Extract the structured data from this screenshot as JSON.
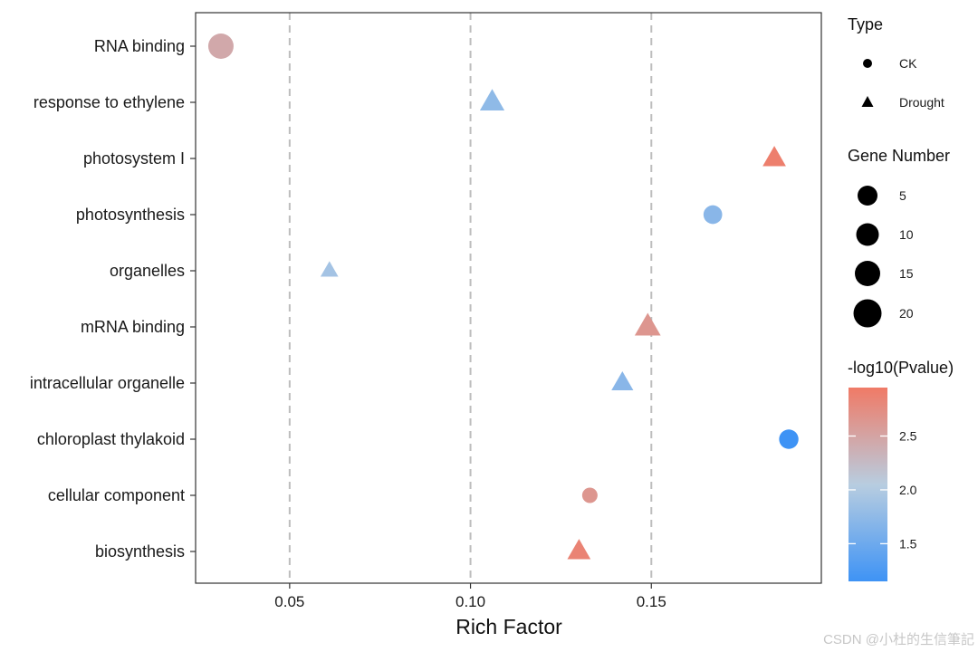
{
  "chart_data": {
    "type": "scatter",
    "xlabel": "Rich Factor",
    "x_ticks": [
      "0.05",
      "0.10",
      "0.15"
    ],
    "xlim": [
      0.024,
      0.197
    ],
    "categories": [
      "biosynthesis",
      "cellular component",
      "chloroplast thylakoid",
      "intracellular organelle",
      "mRNA binding",
      "organelles",
      "photosynthesis",
      "photosystem I",
      "response to ethylene",
      "RNA binding"
    ],
    "points": [
      {
        "term": "RNA binding",
        "rich_factor": 0.031,
        "type": "CK",
        "gene_number": 20,
        "neg_log10_pvalue": 2.45
      },
      {
        "term": "response to ethylene",
        "rich_factor": 0.106,
        "type": "Drought",
        "gene_number": 18,
        "neg_log10_pvalue": 1.75
      },
      {
        "term": "photosystem I",
        "rich_factor": 0.184,
        "type": "Drought",
        "gene_number": 16,
        "neg_log10_pvalue": 2.9
      },
      {
        "term": "photosynthesis",
        "rich_factor": 0.167,
        "type": "CK",
        "gene_number": 10,
        "neg_log10_pvalue": 1.7
      },
      {
        "term": "organelles",
        "rich_factor": 0.061,
        "type": "Drought",
        "gene_number": 8,
        "neg_log10_pvalue": 1.9
      },
      {
        "term": "mRNA binding",
        "rich_factor": 0.149,
        "type": "Drought",
        "gene_number": 20,
        "neg_log10_pvalue": 2.65
      },
      {
        "term": "intracellular organelle",
        "rich_factor": 0.142,
        "type": "Drought",
        "gene_number": 14,
        "neg_log10_pvalue": 1.7
      },
      {
        "term": "chloroplast thylakoid",
        "rich_factor": 0.188,
        "type": "CK",
        "gene_number": 11,
        "neg_log10_pvalue": 1.15
      },
      {
        "term": "cellular component",
        "rich_factor": 0.133,
        "type": "CK",
        "gene_number": 5,
        "neg_log10_pvalue": 2.65
      },
      {
        "term": "biosynthesis",
        "rich_factor": 0.13,
        "type": "Drought",
        "gene_number": 16,
        "neg_log10_pvalue": 2.85
      }
    ],
    "grid": "dashed vertical lines at major x ticks",
    "legend": {
      "position": "right",
      "type": {
        "title": "Type",
        "entries": [
          "CK",
          "Drought"
        ]
      },
      "gene_number": {
        "title": "Gene Number",
        "entries": [
          "5",
          "10",
          "15",
          "20"
        ]
      },
      "color": {
        "title": "-log10(Pvalue)",
        "ticks": [
          "1.5",
          "2.0",
          "2.5"
        ],
        "range": [
          1.15,
          2.95
        ],
        "low_color": "#3e93f5",
        "mid_color": "#b8cde0",
        "high_color": "#f07a66"
      }
    }
  },
  "watermark": "CSDN @小杜的生信筆記"
}
